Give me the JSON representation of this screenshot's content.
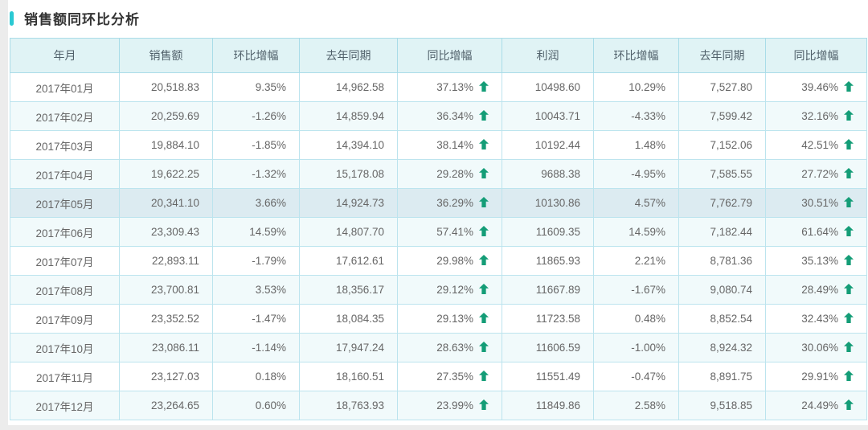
{
  "page": {
    "title": "销售额同环比分析"
  },
  "colors": {
    "accent_teal": "#2bc9d3",
    "positive_green": "#2fb37e",
    "negative_orange": "#f97e57",
    "arrow_green": "#149d77",
    "header_bg": "#e0f3f5",
    "zebra_bg": "#f1fafb",
    "highlight_row_bg": "#dcebf1",
    "border": "#a9dce8"
  },
  "table": {
    "columns": [
      "年月",
      "销售额",
      "环比增幅",
      "去年同期",
      "同比增幅",
      "利润",
      "环比增幅",
      "去年同期",
      "同比增幅"
    ],
    "rows": [
      {
        "month": "2017年01月",
        "sales": "20,518.83",
        "sales_mom": "9.35%",
        "sales_last_year": "14,962.58",
        "sales_yoy": "37.13%",
        "sales_yoy_arrow": "up",
        "profit": "10498.60",
        "profit_mom": "10.29%",
        "profit_last_year": "7,527.80",
        "profit_yoy": "39.46%",
        "profit_yoy_arrow": "up",
        "highlight": false
      },
      {
        "month": "2017年02月",
        "sales": "20,259.69",
        "sales_mom": "-1.26%",
        "sales_last_year": "14,859.94",
        "sales_yoy": "36.34%",
        "sales_yoy_arrow": "up",
        "profit": "10043.71",
        "profit_mom": "-4.33%",
        "profit_last_year": "7,599.42",
        "profit_yoy": "32.16%",
        "profit_yoy_arrow": "up",
        "highlight": false
      },
      {
        "month": "2017年03月",
        "sales": "19,884.10",
        "sales_mom": "-1.85%",
        "sales_last_year": "14,394.10",
        "sales_yoy": "38.14%",
        "sales_yoy_arrow": "up",
        "profit": "10192.44",
        "profit_mom": "1.48%",
        "profit_last_year": "7,152.06",
        "profit_yoy": "42.51%",
        "profit_yoy_arrow": "up",
        "highlight": false
      },
      {
        "month": "2017年04月",
        "sales": "19,622.25",
        "sales_mom": "-1.32%",
        "sales_last_year": "15,178.08",
        "sales_yoy": "29.28%",
        "sales_yoy_arrow": "up",
        "profit": "9688.38",
        "profit_mom": "-4.95%",
        "profit_last_year": "7,585.55",
        "profit_yoy": "27.72%",
        "profit_yoy_arrow": "up",
        "highlight": false
      },
      {
        "month": "2017年05月",
        "sales": "20,341.10",
        "sales_mom": "3.66%",
        "sales_last_year": "14,924.73",
        "sales_yoy": "36.29%",
        "sales_yoy_arrow": "up",
        "profit": "10130.86",
        "profit_mom": "4.57%",
        "profit_last_year": "7,762.79",
        "profit_yoy": "30.51%",
        "profit_yoy_arrow": "up",
        "highlight": true
      },
      {
        "month": "2017年06月",
        "sales": "23,309.43",
        "sales_mom": "14.59%",
        "sales_last_year": "14,807.70",
        "sales_yoy": "57.41%",
        "sales_yoy_arrow": "up",
        "profit": "11609.35",
        "profit_mom": "14.59%",
        "profit_last_year": "7,182.44",
        "profit_yoy": "61.64%",
        "profit_yoy_arrow": "up",
        "highlight": false
      },
      {
        "month": "2017年07月",
        "sales": "22,893.11",
        "sales_mom": "-1.79%",
        "sales_last_year": "17,612.61",
        "sales_yoy": "29.98%",
        "sales_yoy_arrow": "up",
        "profit": "11865.93",
        "profit_mom": "2.21%",
        "profit_last_year": "8,781.36",
        "profit_yoy": "35.13%",
        "profit_yoy_arrow": "up",
        "highlight": false
      },
      {
        "month": "2017年08月",
        "sales": "23,700.81",
        "sales_mom": "3.53%",
        "sales_last_year": "18,356.17",
        "sales_yoy": "29.12%",
        "sales_yoy_arrow": "up",
        "profit": "11667.89",
        "profit_mom": "-1.67%",
        "profit_last_year": "9,080.74",
        "profit_yoy": "28.49%",
        "profit_yoy_arrow": "up",
        "highlight": false
      },
      {
        "month": "2017年09月",
        "sales": "23,352.52",
        "sales_mom": "-1.47%",
        "sales_last_year": "18,084.35",
        "sales_yoy": "29.13%",
        "sales_yoy_arrow": "up",
        "profit": "11723.58",
        "profit_mom": "0.48%",
        "profit_last_year": "8,852.54",
        "profit_yoy": "32.43%",
        "profit_yoy_arrow": "up",
        "highlight": false
      },
      {
        "month": "2017年10月",
        "sales": "23,086.11",
        "sales_mom": "-1.14%",
        "sales_last_year": "17,947.24",
        "sales_yoy": "28.63%",
        "sales_yoy_arrow": "up",
        "profit": "11606.59",
        "profit_mom": "-1.00%",
        "profit_last_year": "8,924.32",
        "profit_yoy": "30.06%",
        "profit_yoy_arrow": "up",
        "highlight": false
      },
      {
        "month": "2017年11月",
        "sales": "23,127.03",
        "sales_mom": "0.18%",
        "sales_last_year": "18,160.51",
        "sales_yoy": "27.35%",
        "sales_yoy_arrow": "up",
        "profit": "11551.49",
        "profit_mom": "-0.47%",
        "profit_last_year": "8,891.75",
        "profit_yoy": "29.91%",
        "profit_yoy_arrow": "up",
        "highlight": false
      },
      {
        "month": "2017年12月",
        "sales": "23,264.65",
        "sales_mom": "0.60%",
        "sales_last_year": "18,763.93",
        "sales_yoy": "23.99%",
        "sales_yoy_arrow": "up",
        "profit": "11849.86",
        "profit_mom": "2.58%",
        "profit_last_year": "9,518.85",
        "profit_yoy": "24.49%",
        "profit_yoy_arrow": "up",
        "highlight": false
      }
    ]
  }
}
